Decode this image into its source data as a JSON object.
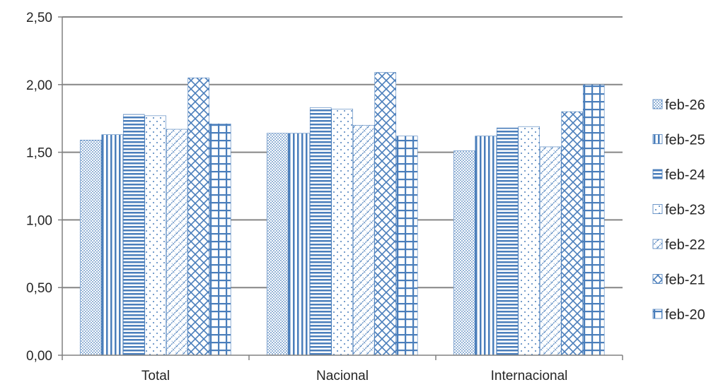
{
  "chart_data": {
    "type": "bar",
    "categories": [
      "Total",
      "Nacional",
      "Internacional"
    ],
    "series": [
      {
        "name": "feb-26",
        "values": [
          1.59,
          1.64,
          1.51
        ],
        "pattern": "dots-dense"
      },
      {
        "name": "feb-25",
        "values": [
          1.63,
          1.64,
          1.62
        ],
        "pattern": "vertical-lines"
      },
      {
        "name": "feb-24",
        "values": [
          1.78,
          1.83,
          1.68
        ],
        "pattern": "horizontal-lines"
      },
      {
        "name": "feb-23",
        "values": [
          1.77,
          1.82,
          1.69
        ],
        "pattern": "dots-sparse"
      },
      {
        "name": "feb-22",
        "values": [
          1.67,
          1.7,
          1.54
        ],
        "pattern": "diagonal-light"
      },
      {
        "name": "feb-21",
        "values": [
          2.05,
          2.09,
          1.8
        ],
        "pattern": "diagonal-cross"
      },
      {
        "name": "feb-20",
        "values": [
          1.71,
          1.62,
          2.0
        ],
        "pattern": "grid"
      }
    ],
    "ylim": [
      0,
      2.5
    ],
    "yticks": [
      "0,00",
      "0,50",
      "1,00",
      "1,50",
      "2,00",
      "2,50"
    ],
    "ytick_values": [
      0,
      0.5,
      1.0,
      1.5,
      2.0,
      2.5
    ],
    "grid": true,
    "legend_position": "right",
    "colors": {
      "bar": "#4a7ebb",
      "axis": "#808080",
      "grid": "#868686",
      "text": "#262626"
    }
  }
}
